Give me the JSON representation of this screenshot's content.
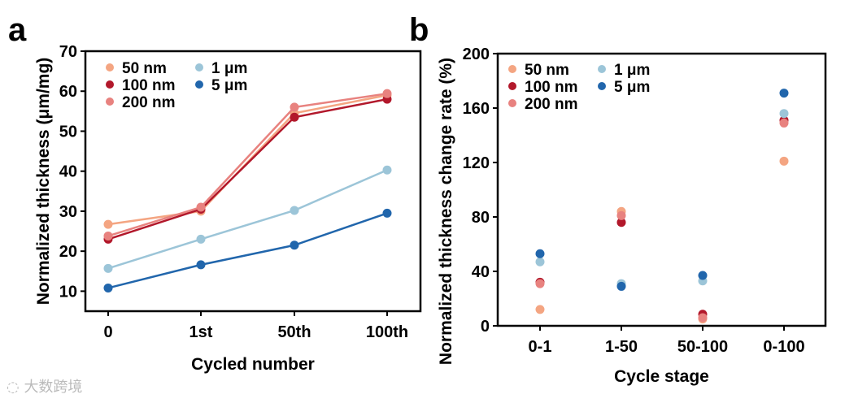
{
  "chart_data": [
    {
      "type": "line",
      "panel_label": "a",
      "xlabel": "Cycled number",
      "ylabel": "Normalized thickness (μm/mg)",
      "categories": [
        "0",
        "1st",
        "50th",
        "100th"
      ],
      "ylim": [
        5,
        70
      ],
      "yticks": [
        10,
        20,
        30,
        40,
        50,
        60,
        70
      ],
      "legend": "top-left",
      "series": [
        {
          "name": "50 nm",
          "color": "#F4A582",
          "values": [
            26.7,
            30.0,
            54.5,
            59.0
          ]
        },
        {
          "name": "100 nm",
          "color": "#B2182B",
          "values": [
            23.0,
            30.5,
            53.5,
            58.0
          ]
        },
        {
          "name": "200 nm",
          "color": "#E8827F",
          "values": [
            23.8,
            31.0,
            56.0,
            59.4
          ]
        },
        {
          "name": "1 μm",
          "color": "#9CC5D8",
          "values": [
            15.7,
            23.0,
            30.2,
            40.3
          ]
        },
        {
          "name": "5 μm",
          "color": "#2166AC",
          "values": [
            10.8,
            16.6,
            21.5,
            29.5
          ]
        }
      ]
    },
    {
      "type": "scatter",
      "panel_label": "b",
      "xlabel": "Cycle stage",
      "ylabel": "Normalized thickness change rate (%)",
      "categories": [
        "0-1",
        "1-50",
        "50-100",
        "0-100"
      ],
      "ylim": [
        0,
        200
      ],
      "yticks": [
        0,
        40,
        80,
        120,
        160,
        200
      ],
      "legend": "top-left",
      "series": [
        {
          "name": "50 nm",
          "color": "#F4A582",
          "values": [
            12,
            84,
            5,
            121
          ]
        },
        {
          "name": "100 nm",
          "color": "#B2182B",
          "values": [
            32,
            76,
            8.5,
            151
          ]
        },
        {
          "name": "200 nm",
          "color": "#E8827F",
          "values": [
            31,
            81,
            6,
            149
          ]
        },
        {
          "name": "1 μm",
          "color": "#9CC5D8",
          "values": [
            47,
            31,
            33,
            156
          ]
        },
        {
          "name": "5 μm",
          "color": "#2166AC",
          "values": [
            53,
            29,
            37,
            171
          ]
        }
      ]
    }
  ],
  "watermark": "大数跨境"
}
